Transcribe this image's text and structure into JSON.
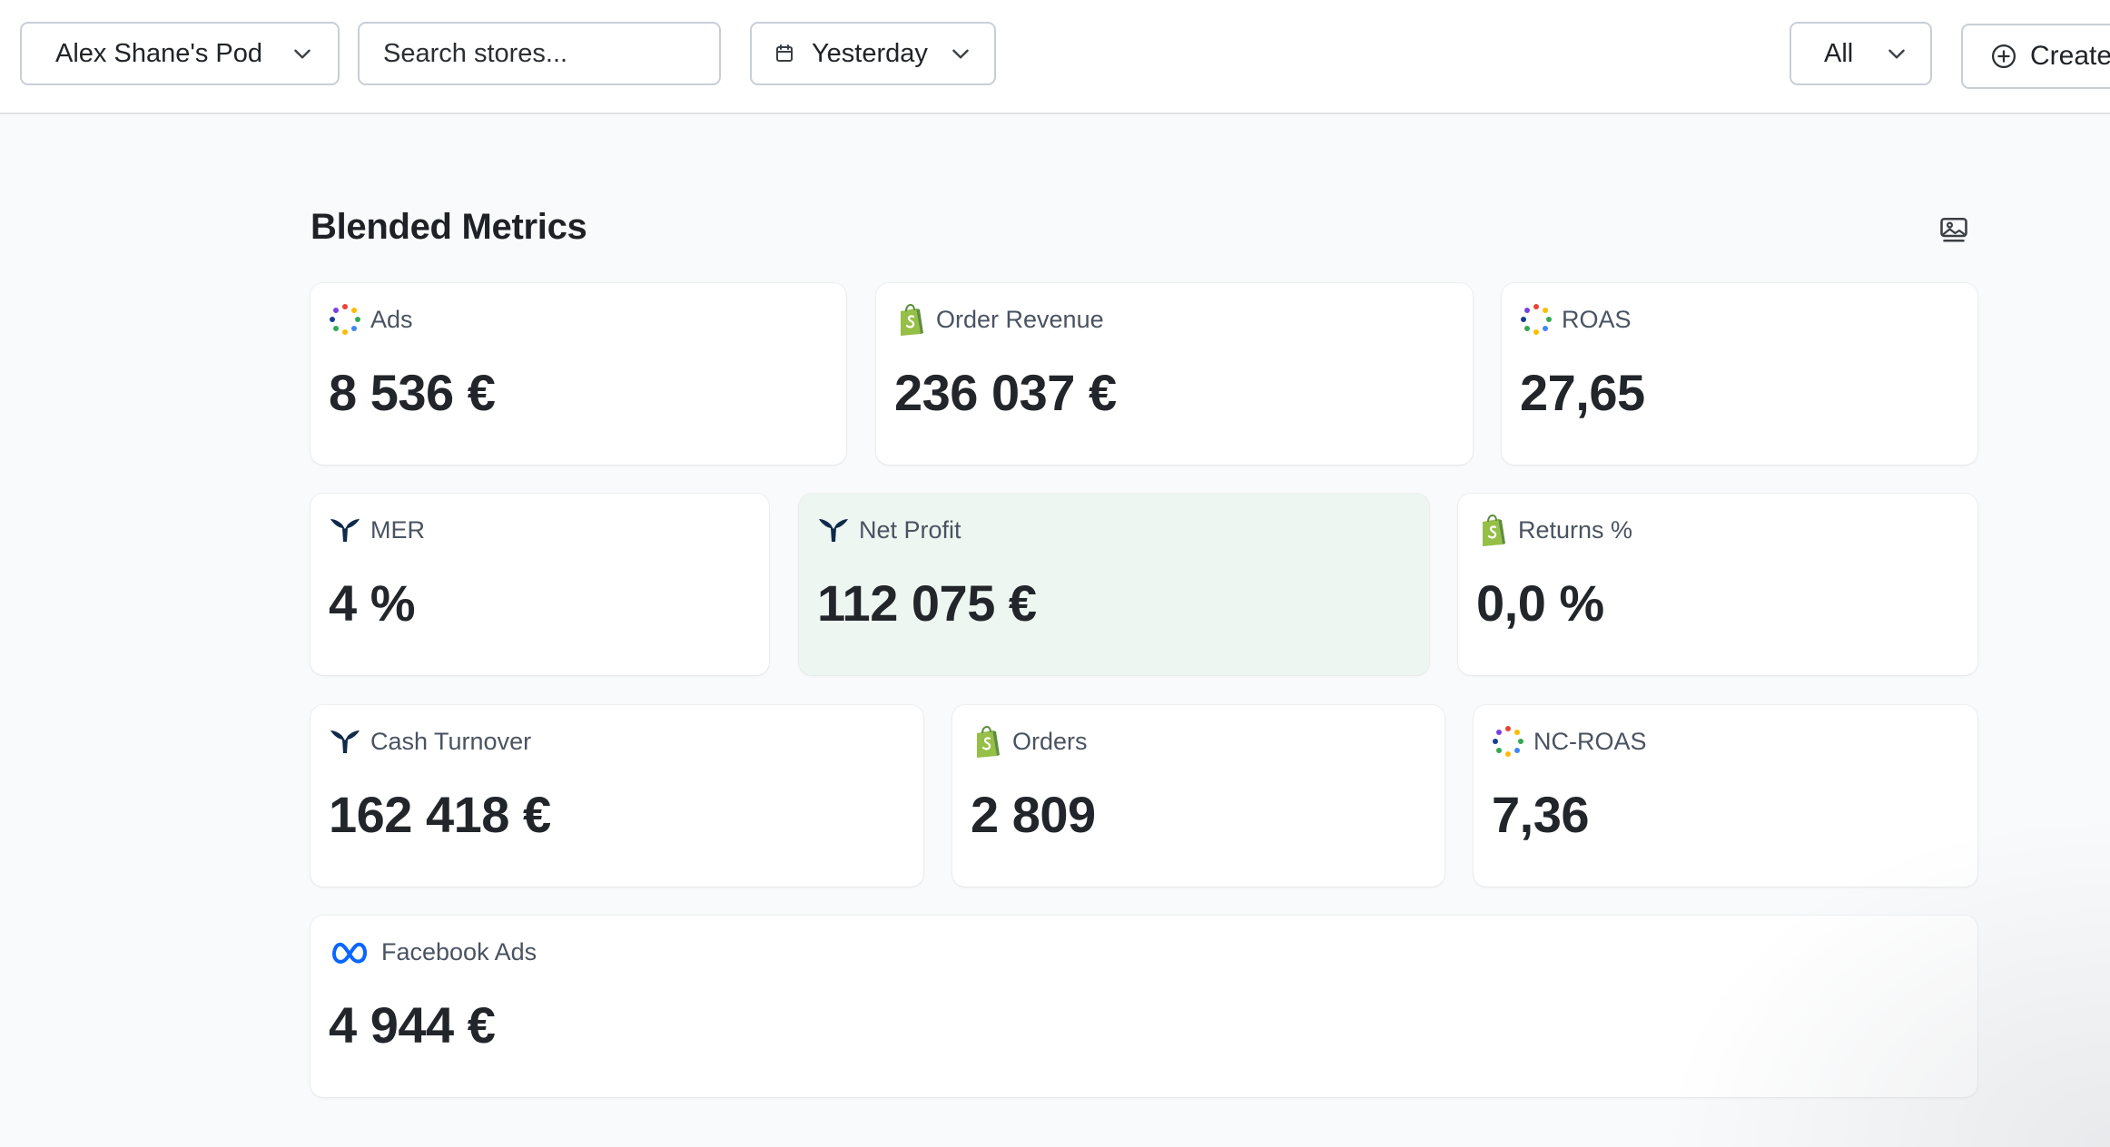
{
  "topbar": {
    "pod_label": "Alex Shane's Pod",
    "search_placeholder": "Search stores...",
    "date_label": "Yesterday",
    "filter_label": "All",
    "create_label": "Create"
  },
  "section": {
    "title": "Blended Metrics"
  },
  "cards": [
    {
      "label": "Ads",
      "value": "8 536 €",
      "icon": "dots-icon"
    },
    {
      "label": "Order Revenue",
      "value": "236 037 €",
      "icon": "shopify-icon"
    },
    {
      "label": "ROAS",
      "value": "27,65",
      "icon": "dots-icon"
    },
    {
      "label": "MER",
      "value": "4 %",
      "icon": "triple-whale-icon"
    },
    {
      "label": "Net Profit",
      "value": "112 075 €",
      "icon": "triple-whale-icon",
      "highlighted": true
    },
    {
      "label": "Returns %",
      "value": "0,0 %",
      "icon": "shopify-icon"
    },
    {
      "label": "Cash Turnover",
      "value": "162 418 €",
      "icon": "triple-whale-icon"
    },
    {
      "label": "Orders",
      "value": "2 809",
      "icon": "shopify-icon"
    },
    {
      "label": "NC-ROAS",
      "value": "7,36",
      "icon": "dots-icon"
    },
    {
      "label": "Facebook Ads",
      "value": "4 944 €",
      "icon": "meta-icon"
    }
  ],
  "colors": {
    "highlight_bg": "#eef6f1",
    "shopify_green": "#95bf47",
    "whale_navy": "#0f2a4a",
    "meta_blue": "#0866ff"
  }
}
